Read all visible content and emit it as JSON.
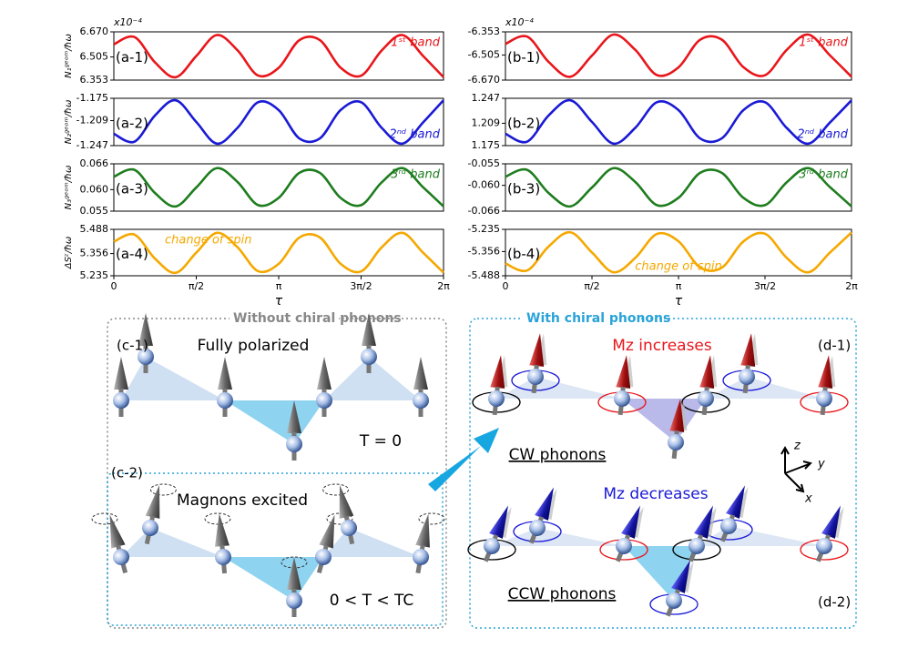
{
  "chart_data": [
    {
      "type": "line",
      "panel_label": "(a-1)",
      "ylabel": "N₁ᵍᵉᵒᵐ/ħω",
      "multiplier": "x10⁻⁴",
      "band_label": "1ˢᵗ band",
      "band_label_loc": "upper right",
      "xlim": [
        0,
        6.283
      ],
      "ylim": [
        6.353,
        6.67
      ],
      "yticks": [
        6.353,
        6.505,
        {
          "value": 6.67,
          "label": "6.670"
        }
      ],
      "x": [
        0,
        0.393,
        0.785,
        1.178,
        1.571,
        1.963,
        2.356,
        2.749,
        3.142,
        3.534,
        3.927,
        4.32,
        4.712,
        5.105,
        5.498,
        5.89,
        6.283
      ],
      "series": [
        {
          "color": "#e8161b",
          "values": [
            6.588,
            6.636,
            6.469,
            6.372,
            6.511,
            6.649,
            6.549,
            6.383,
            6.434,
            6.615,
            6.616,
            6.435,
            6.382,
            6.548,
            6.649,
            6.513,
            6.372
          ]
        }
      ]
    },
    {
      "type": "line",
      "panel_label": "(a-2)",
      "ylabel": "N₂ᵍᵉᵒᵐ/ħω",
      "band_label": "2ⁿᵈ band",
      "band_label_loc": "lower right",
      "xlim": [
        0,
        6.283
      ],
      "ylim": [
        -1.247,
        -1.175
      ],
      "yticks": [
        -1.247,
        -1.209,
        -1.175
      ],
      "x": [
        0,
        0.393,
        0.785,
        1.178,
        1.571,
        1.963,
        2.356,
        2.749,
        3.142,
        3.534,
        3.927,
        4.32,
        4.712,
        5.105,
        5.498,
        5.89,
        6.283
      ],
      "series": [
        {
          "color": "#1a1ad6",
          "values": [
            -1.229,
            -1.241,
            -1.201,
            -1.178,
            -1.211,
            -1.244,
            -1.22,
            -1.181,
            -1.193,
            -1.236,
            -1.236,
            -1.193,
            -1.181,
            -1.22,
            -1.244,
            -1.212,
            -1.178
          ]
        }
      ]
    },
    {
      "type": "line",
      "panel_label": "(a-3)",
      "ylabel": "N₃ᵍᵉᵒᵐ/ħω",
      "band_label": "3ʳᵈ band",
      "band_label_loc": "upper right",
      "xlim": [
        0,
        6.283
      ],
      "ylim": [
        0.055,
        0.066
      ],
      "yticks": [
        0.055,
        {
          "value": 0.06,
          "label": "0.060"
        },
        0.066
      ],
      "x": [
        0,
        0.393,
        0.785,
        1.178,
        1.571,
        1.963,
        2.356,
        2.749,
        3.142,
        3.534,
        3.927,
        4.32,
        4.712,
        5.105,
        5.498,
        5.89,
        6.283
      ],
      "series": [
        {
          "color": "#1e7d1e",
          "values": [
            0.063,
            0.0646,
            0.0592,
            0.0561,
            0.0605,
            0.065,
            0.0618,
            0.0564,
            0.0581,
            0.0639,
            0.0639,
            0.0581,
            0.0564,
            0.0617,
            0.065,
            0.0606,
            0.0561
          ]
        }
      ]
    },
    {
      "type": "line",
      "panel_label": "(a-4)",
      "ylabel": "ΔSᶻ/ħω",
      "band_label": "change of spin",
      "band_label_loc": "upper left",
      "xlabel": "τ",
      "xlim": [
        0,
        6.283
      ],
      "ylim": [
        5.235,
        5.488
      ],
      "yticks": [
        5.235,
        5.356,
        5.488
      ],
      "xticks": [
        0,
        {
          "value": 1.571,
          "label": "π/2"
        },
        {
          "value": 3.142,
          "label": "π"
        },
        {
          "value": 4.712,
          "label": "3π/2"
        },
        {
          "value": 6.283,
          "label": "2π"
        }
      ],
      "x": [
        0,
        0.393,
        0.785,
        1.178,
        1.571,
        1.963,
        2.356,
        2.749,
        3.142,
        3.534,
        3.927,
        4.32,
        4.712,
        5.105,
        5.498,
        5.89,
        6.283
      ],
      "series": [
        {
          "color": "#f5a800",
          "values": [
            5.421,
            5.459,
            5.328,
            5.251,
            5.361,
            5.469,
            5.391,
            5.26,
            5.3,
            5.443,
            5.444,
            5.301,
            5.259,
            5.39,
            5.469,
            5.362,
            5.252
          ]
        }
      ]
    },
    {
      "type": "line",
      "panel_label": "(b-1)",
      "multiplier": "x10⁻⁴",
      "band_label": "1ˢᵗ band",
      "band_label_loc": "upper right",
      "xlim": [
        0,
        6.283
      ],
      "ylim": [
        -6.67,
        -6.353
      ],
      "yticks": [
        {
          "value": -6.67,
          "label": "-6.670"
        },
        -6.505,
        -6.353
      ],
      "x": [
        0,
        0.393,
        0.785,
        1.178,
        1.571,
        1.963,
        2.356,
        2.749,
        3.142,
        3.534,
        3.927,
        4.32,
        4.712,
        5.105,
        5.498,
        5.89,
        6.283
      ],
      "series": [
        {
          "color": "#e8161b",
          "values": [
            -6.432,
            -6.384,
            -6.551,
            -6.648,
            -6.509,
            -6.371,
            -6.471,
            -6.637,
            -6.586,
            -6.405,
            -6.404,
            -6.585,
            -6.638,
            -6.472,
            -6.371,
            -6.507,
            -6.648
          ]
        }
      ]
    },
    {
      "type": "line",
      "panel_label": "(b-2)",
      "band_label": "2ⁿᵈ band",
      "band_label_loc": "lower right",
      "xlim": [
        0,
        6.283
      ],
      "ylim": [
        1.175,
        1.247
      ],
      "yticks": [
        1.175,
        1.209,
        1.247
      ],
      "x": [
        0,
        0.393,
        0.785,
        1.178,
        1.571,
        1.963,
        2.356,
        2.749,
        3.142,
        3.534,
        3.927,
        4.32,
        4.712,
        5.105,
        5.498,
        5.89,
        6.283
      ],
      "series": [
        {
          "color": "#1a1ad6",
          "values": [
            1.193,
            1.181,
            1.221,
            1.244,
            1.211,
            1.178,
            1.202,
            1.241,
            1.229,
            1.186,
            1.186,
            1.229,
            1.241,
            1.202,
            1.178,
            1.21,
            1.244
          ]
        }
      ]
    },
    {
      "type": "line",
      "panel_label": "(b-3)",
      "band_label": "3ʳᵈ band",
      "band_label_loc": "upper right",
      "xlim": [
        0,
        6.283
      ],
      "ylim": [
        -0.066,
        -0.055
      ],
      "yticks": [
        -0.066,
        {
          "value": -0.06,
          "label": "-0.060"
        },
        -0.055
      ],
      "x": [
        0,
        0.393,
        0.785,
        1.178,
        1.571,
        1.963,
        2.356,
        2.749,
        3.142,
        3.534,
        3.927,
        4.32,
        4.712,
        5.105,
        5.498,
        5.89,
        6.283
      ],
      "series": [
        {
          "color": "#1e7d1e",
          "values": [
            -0.058,
            -0.0564,
            -0.0618,
            -0.0649,
            -0.0605,
            -0.056,
            -0.0592,
            -0.0646,
            -0.0629,
            -0.0571,
            -0.0571,
            -0.0629,
            -0.0646,
            -0.0593,
            -0.056,
            -0.0604,
            -0.0649
          ]
        }
      ]
    },
    {
      "type": "line",
      "panel_label": "(b-4)",
      "band_label": "change of spin",
      "band_label_loc": "lower center",
      "xlabel": "τ",
      "xlim": [
        0,
        6.283
      ],
      "ylim": [
        -5.488,
        -5.235
      ],
      "yticks": [
        -5.488,
        -5.356,
        -5.235
      ],
      "xticks": [
        0,
        {
          "value": 1.571,
          "label": "π/2"
        },
        {
          "value": 3.142,
          "label": "π"
        },
        {
          "value": 4.712,
          "label": "3π/2"
        },
        {
          "value": 6.283,
          "label": "2π"
        }
      ],
      "x": [
        0,
        0.393,
        0.785,
        1.178,
        1.571,
        1.963,
        2.356,
        2.749,
        3.142,
        3.534,
        3.927,
        4.32,
        4.712,
        5.105,
        5.498,
        5.89,
        6.283
      ],
      "series": [
        {
          "color": "#f5a800",
          "values": [
            -5.421,
            -5.459,
            -5.328,
            -5.251,
            -5.361,
            -5.469,
            -5.391,
            -5.26,
            -5.3,
            -5.443,
            -5.444,
            -5.301,
            -5.259,
            -5.39,
            -5.469,
            -5.362,
            -5.252
          ]
        }
      ]
    }
  ],
  "diagram": {
    "left_title": "Without chiral phonons",
    "c1_label": "(c-1)",
    "c1_caption": "Fully polarized",
    "c1_temp": "T = 0",
    "c2_label": "(c-2)",
    "c2_caption": "Magnons excited",
    "c2_temp": "0 < T < TC",
    "right_title": "With chiral phonons",
    "d1_label": "(d-1)",
    "d1_caption": "Mz increases",
    "d1_phonon": "CW phonons",
    "d2_label": "(d-2)",
    "d2_caption": "Mz decreases",
    "d2_phonon": "CCW phonons",
    "axis_z": "z",
    "axis_y": "y",
    "axis_x": "x"
  }
}
